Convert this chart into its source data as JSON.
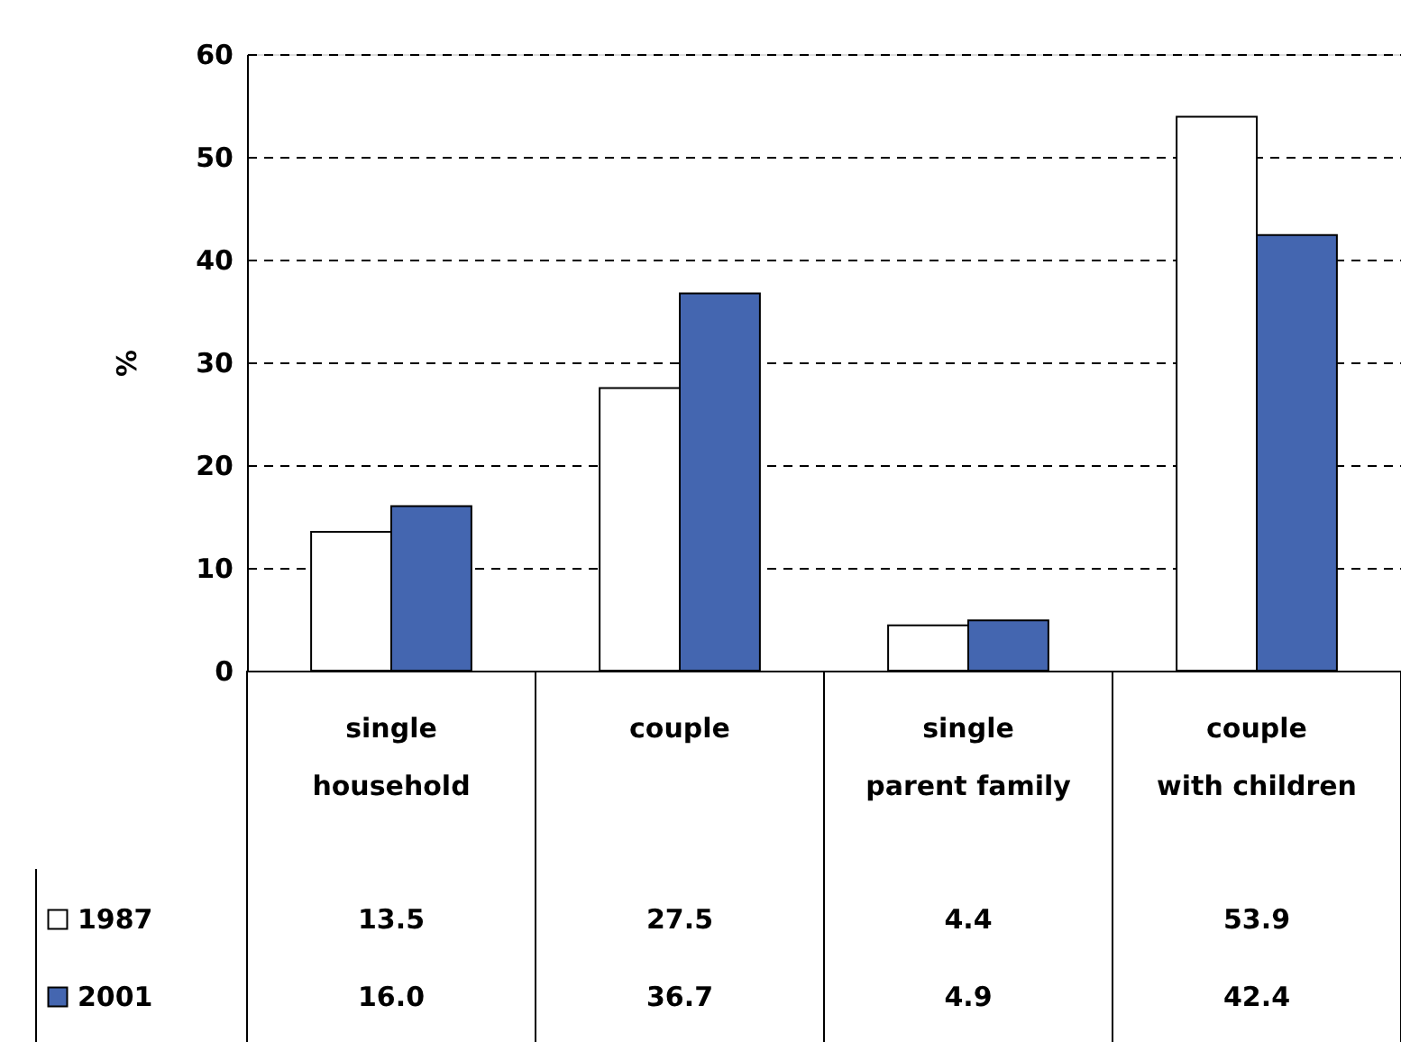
{
  "chart_data": {
    "type": "bar",
    "ylabel": "%",
    "categories": [
      "single\nhousehold",
      "couple",
      "single\nparent family",
      "couple\nwith children"
    ],
    "series": [
      {
        "name": "1987",
        "color": "#ffffff",
        "values": [
          13.5,
          27.5,
          4.4,
          53.9
        ],
        "value_labels": [
          "13.5",
          "27.5",
          "4.4",
          "53.9"
        ]
      },
      {
        "name": "2001",
        "color": "#4466b0",
        "values": [
          16.0,
          36.7,
          4.9,
          42.4
        ],
        "value_labels": [
          "16.0",
          "36.7",
          "4.9",
          "42.4"
        ]
      }
    ],
    "ylim": [
      0,
      60
    ],
    "yticks": [
      0,
      10,
      20,
      30,
      40,
      50,
      60
    ],
    "grid": "y",
    "legend": "bottom left"
  }
}
